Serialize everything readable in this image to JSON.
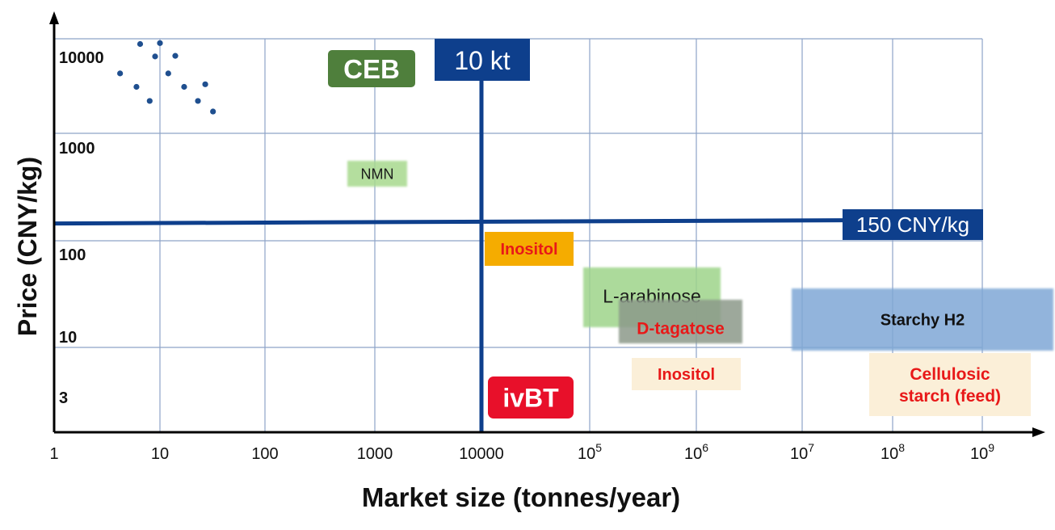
{
  "chart_data": {
    "type": "scatter",
    "xlabel": "Market size  (tonnes/year)",
    "ylabel": "Price (CNY/kg)",
    "x_scale": "log",
    "y_scale": "log",
    "xlim": [
      1,
      1000000000
    ],
    "ylim": [
      1,
      10000
    ],
    "x_ticks": [
      {
        "label": "1",
        "exp": null
      },
      {
        "label": "10",
        "exp": null
      },
      {
        "label": "100",
        "exp": null
      },
      {
        "label": "1000",
        "exp": null
      },
      {
        "label": "10000",
        "exp": null
      },
      {
        "label": "10",
        "exp": "5"
      },
      {
        "label": "10",
        "exp": "6"
      },
      {
        "label": "10",
        "exp": "7"
      },
      {
        "label": "10",
        "exp": "8"
      },
      {
        "label": "10",
        "exp": "9"
      }
    ],
    "y_ticks": [
      "10000",
      "1000",
      "100",
      "10",
      "3"
    ],
    "grid": true,
    "points": [
      {
        "x": 6.5,
        "y": 8800
      },
      {
        "x": 10,
        "y": 9000
      },
      {
        "x": 9,
        "y": 6500
      },
      {
        "x": 14,
        "y": 6600
      },
      {
        "x": 4.2,
        "y": 4300
      },
      {
        "x": 12,
        "y": 4300
      },
      {
        "x": 6,
        "y": 3100
      },
      {
        "x": 17,
        "y": 3100
      },
      {
        "x": 27,
        "y": 3300
      },
      {
        "x": 8,
        "y": 2200
      },
      {
        "x": 23,
        "y": 2200
      },
      {
        "x": 32,
        "y": 1700
      }
    ],
    "thresholds": [
      {
        "label": "10 kt",
        "axis": "x",
        "value": 10000
      },
      {
        "label": "150 CNY/kg",
        "axis": "y",
        "value": 150
      }
    ],
    "regions": [
      {
        "label": "CEB"
      },
      {
        "label": "ivBT"
      },
      {
        "label": "NMN"
      },
      {
        "label": "Inositol"
      },
      {
        "label": "L-arabinose"
      },
      {
        "label": "D-tagatose"
      },
      {
        "label": "Starchy H2"
      },
      {
        "label": "Inositol"
      },
      {
        "label": "Cellulosic starch (feed)"
      }
    ]
  },
  "colors": {
    "axis": "#000000",
    "grid": "#8ea3c8",
    "navy": "#0e3f8c",
    "dot": "#1f4f8f",
    "ceb_green": "#4f7f3c",
    "ivbt_red": "#e8102a",
    "nmn_green": "#a8d98e",
    "inositol_orange": "#f5ac00",
    "arabinose_green": "#9ed48a",
    "tagatose_gray": "#8c9a8a",
    "starchy_blue": "#7fa8d6",
    "beige": "#fbefd8",
    "red_text": "#e8202a"
  }
}
